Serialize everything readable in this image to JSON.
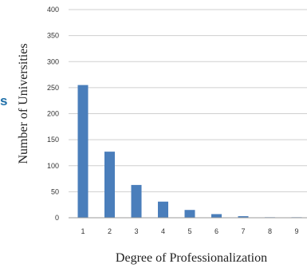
{
  "edge_fragment": "s",
  "chart_data": {
    "type": "bar",
    "xlabel": "Degree of Professionalization",
    "ylabel": "Number of Universities",
    "categories": [
      "1",
      "2",
      "3",
      "4",
      "5",
      "6",
      "7",
      "8",
      "9"
    ],
    "values": [
      255,
      127,
      63,
      31,
      15,
      7,
      3,
      1,
      1
    ],
    "ylim": [
      0,
      400
    ],
    "yticks": [
      0,
      50,
      100,
      150,
      200,
      250,
      300,
      350,
      400
    ],
    "grid": true,
    "legend": "none",
    "bar_color": "#4a7ebb"
  }
}
